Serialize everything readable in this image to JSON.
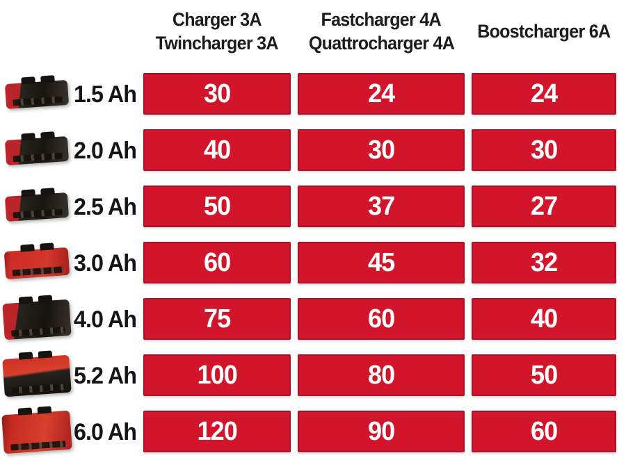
{
  "chart_data": {
    "type": "table",
    "title": "",
    "categories": [
      "1.5 Ah",
      "2.0 Ah",
      "2.5 Ah",
      "3.0 Ah",
      "4.0 Ah",
      "5.2 Ah",
      "6.0 Ah"
    ],
    "series": [
      {
        "name": "Charger 3A / Twincharger 3A",
        "values": [
          30,
          40,
          50,
          60,
          75,
          100,
          120
        ]
      },
      {
        "name": "Fastcharger 4A / Quattrocharger 4A",
        "values": [
          24,
          30,
          37,
          45,
          60,
          80,
          90
        ]
      },
      {
        "name": "Boostcharger 6A",
        "values": [
          24,
          30,
          27,
          32,
          40,
          50,
          60
        ]
      }
    ],
    "legend_position": "top",
    "grid": false
  },
  "columns": [
    {
      "line1": "Charger 3A",
      "line2": "Twincharger 3A"
    },
    {
      "line1": "Fastcharger 4A",
      "line2": "Quattrocharger 4A"
    },
    {
      "line1": "Boostcharger 6A"
    }
  ],
  "battery_variants": [
    "slim-dark",
    "slim-dark",
    "slim-dark",
    "slim-red",
    "tall-dark",
    "tall-mix",
    "tall-red"
  ],
  "colors": {
    "cell_red": "#d2152b",
    "cell_text": "#ffffff",
    "label_text": "#1c1c1c",
    "background": "#ffffff"
  }
}
